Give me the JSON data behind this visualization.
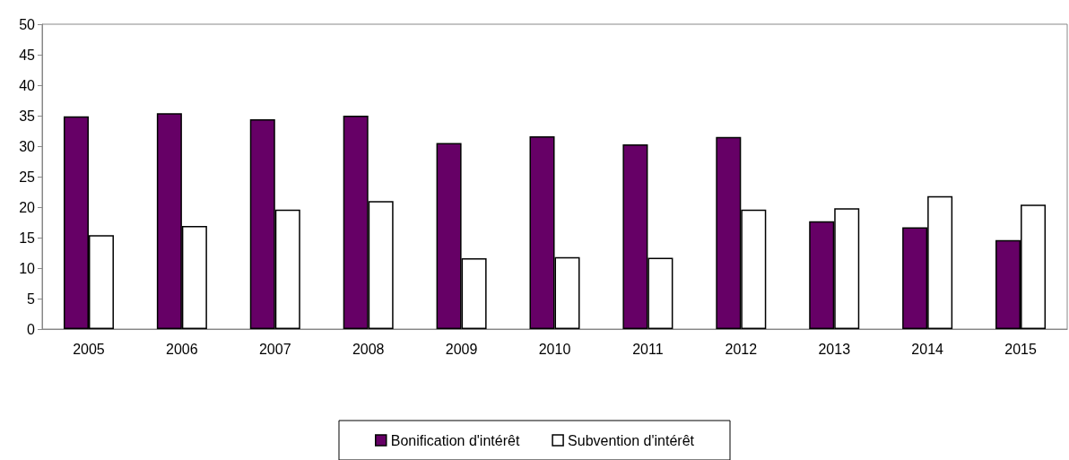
{
  "chart_data": {
    "type": "bar",
    "categories": [
      "2005",
      "2006",
      "2007",
      "2008",
      "2009",
      "2010",
      "2011",
      "2012",
      "2013",
      "2014",
      "2015"
    ],
    "series": [
      {
        "name": "Bonification d'intérêt",
        "color": "#660066",
        "values": [
          34.9,
          35.4,
          34.4,
          35.0,
          30.5,
          31.6,
          30.3,
          31.5,
          17.7,
          16.7,
          14.6
        ]
      },
      {
        "name": "Subvention d'intérêt",
        "color": "#ffffff",
        "values": [
          15.4,
          16.9,
          19.6,
          21.0,
          11.6,
          11.8,
          11.7,
          19.6,
          19.8,
          21.8,
          20.4
        ]
      }
    ],
    "ylim": [
      0,
      50
    ],
    "yticks": [
      0,
      5,
      10,
      15,
      20,
      25,
      30,
      35,
      40,
      45,
      50
    ],
    "grid": false,
    "legend": "bottom"
  }
}
